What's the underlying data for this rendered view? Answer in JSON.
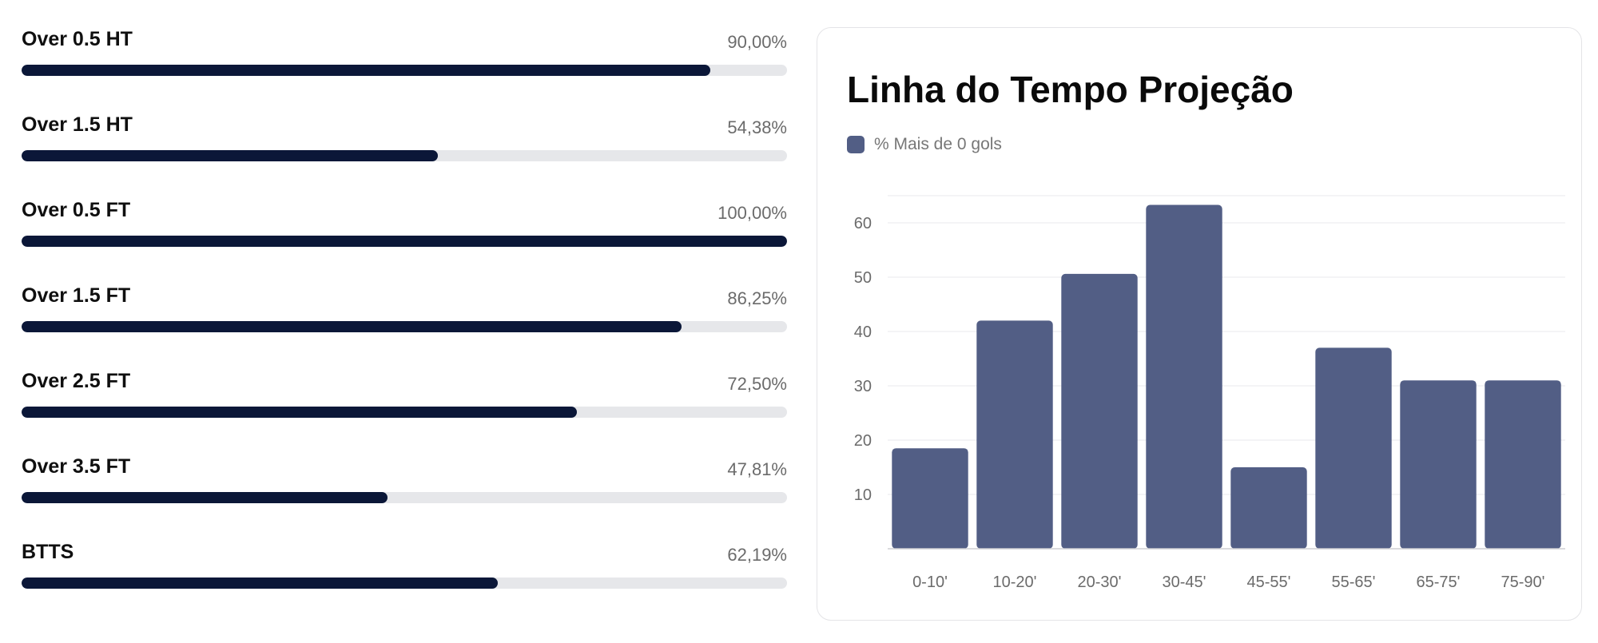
{
  "stats": [
    {
      "label": "Over 0.5 HT",
      "value_text": "90,00%",
      "percent": 90.0
    },
    {
      "label": "Over 1.5 HT",
      "value_text": "54,38%",
      "percent": 54.38
    },
    {
      "label": "Over 0.5 FT",
      "value_text": "100,00%",
      "percent": 100.0
    },
    {
      "label": "Over 1.5 FT",
      "value_text": "86,25%",
      "percent": 86.25
    },
    {
      "label": "Over 2.5 FT",
      "value_text": "72,50%",
      "percent": 72.5
    },
    {
      "label": "Over 3.5 FT",
      "value_text": "47,81%",
      "percent": 47.81
    },
    {
      "label": "BTTS",
      "value_text": "62,19%",
      "percent": 62.19
    }
  ],
  "colors": {
    "bar_fill": "#0b1738",
    "bar_track": "#e6e7ea",
    "chart_bar": "#525e85",
    "grid": "#e9e9ec",
    "axis": "#cfcfd4"
  },
  "chart_data": {
    "type": "bar",
    "title": "Linha do Tempo Projeção",
    "categories": [
      "0-10'",
      "10-20'",
      "20-30'",
      "30-45'",
      "45-55'",
      "55-65'",
      "65-75'",
      "75-90'"
    ],
    "series": [
      {
        "name": "% Mais de 0 gols",
        "values": [
          18.5,
          42,
          50.6,
          63.3,
          15,
          37,
          31,
          31
        ]
      }
    ],
    "yticks": [
      10,
      20,
      30,
      40,
      50,
      60
    ],
    "ylim": [
      0,
      65
    ],
    "xlabel": "",
    "ylabel": "",
    "legend_position": "top-left",
    "grid": true
  }
}
